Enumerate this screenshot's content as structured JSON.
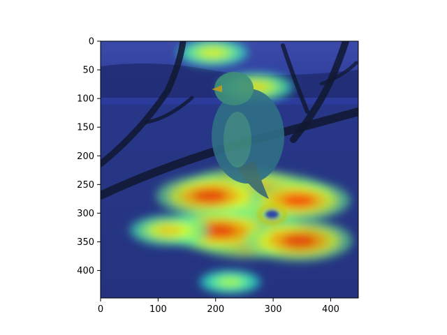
{
  "chart_data": {
    "type": "heatmap",
    "title": "",
    "xlabel": "",
    "ylabel": "",
    "xlim": [
      0,
      448
    ],
    "ylim": [
      448,
      0
    ],
    "x_ticks": [
      0,
      100,
      200,
      300,
      400
    ],
    "y_ticks": [
      0,
      50,
      100,
      150,
      200,
      250,
      300,
      350,
      400
    ],
    "x_tick_labels": [
      "0",
      "100",
      "200",
      "300",
      "400"
    ],
    "y_tick_labels": [
      "0",
      "50",
      "100",
      "150",
      "200",
      "250",
      "300",
      "350",
      "400"
    ],
    "grid": false,
    "colormap": "jet",
    "overlay": "class-activation heatmap blended over a photograph of a bird perched on a bare branch",
    "hotspots": [
      {
        "x": 245,
        "y": 262,
        "intensity": 1.0
      },
      {
        "x": 300,
        "y": 270,
        "intensity": 0.95
      },
      {
        "x": 345,
        "y": 278,
        "intensity": 0.8
      },
      {
        "x": 190,
        "y": 270,
        "intensity": 0.85
      },
      {
        "x": 255,
        "y": 338,
        "intensity": 1.0
      },
      {
        "x": 205,
        "y": 330,
        "intensity": 0.85
      },
      {
        "x": 345,
        "y": 348,
        "intensity": 0.85
      },
      {
        "x": 120,
        "y": 330,
        "intensity": 0.55
      },
      {
        "x": 270,
        "y": 80,
        "intensity": 0.5
      },
      {
        "x": 195,
        "y": 20,
        "intensity": 0.45
      },
      {
        "x": 225,
        "y": 420,
        "intensity": 0.35
      }
    ],
    "cold_spot": {
      "x": 298,
      "y": 302
    }
  }
}
